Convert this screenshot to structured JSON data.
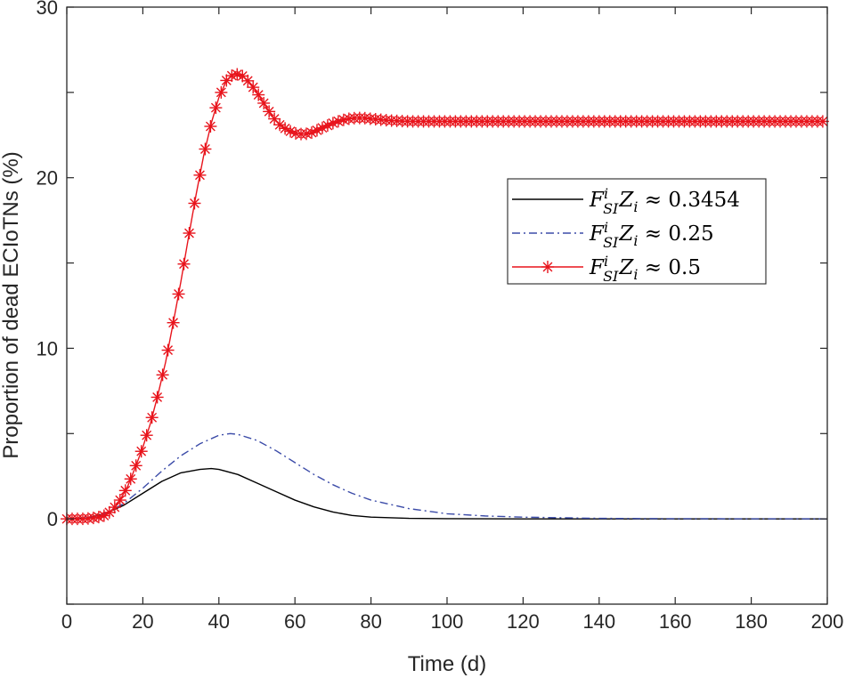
{
  "chart_data": {
    "type": "line",
    "title": "",
    "xlabel": "Time (d)",
    "ylabel": "Proportion of dead ECIoTNs (%)",
    "xlim": [
      0,
      200
    ],
    "ylim": [
      -5,
      30
    ],
    "xticks": [
      0,
      20,
      40,
      60,
      80,
      100,
      120,
      140,
      160,
      180,
      200
    ],
    "yticks": [
      0,
      10,
      20,
      30
    ],
    "grid": false,
    "legend_position": "upper-right",
    "series": [
      {
        "name": "F_SI^i Z_i ≈ 0.3454",
        "legend_main": "F",
        "legend_sup": "i",
        "legend_sub": "SI",
        "legend_z": "Z",
        "legend_zsub": "i",
        "legend_value": " ≈ 0.3454",
        "color": "#000000",
        "style": "solid",
        "marker": "none",
        "x": [
          0,
          5,
          10,
          15,
          20,
          25,
          30,
          35,
          38,
          40,
          45,
          50,
          55,
          60,
          65,
          70,
          75,
          80,
          90,
          100,
          120,
          150,
          200
        ],
        "y": [
          0,
          0.05,
          0.3,
          0.8,
          1.5,
          2.2,
          2.7,
          2.9,
          2.95,
          2.9,
          2.6,
          2.1,
          1.6,
          1.1,
          0.7,
          0.4,
          0.2,
          0.1,
          0.03,
          0.01,
          0,
          0,
          0
        ]
      },
      {
        "name": "F_SI^i Z_i ≈ 0.25",
        "legend_main": "F",
        "legend_sup": "i",
        "legend_sub": "SI",
        "legend_z": "Z",
        "legend_zsub": "i",
        "legend_value": " ≈ 0.25",
        "color": "#3b4ba8",
        "style": "dashdot",
        "marker": "none",
        "x": [
          0,
          5,
          10,
          15,
          20,
          25,
          30,
          35,
          40,
          43,
          45,
          50,
          55,
          60,
          65,
          70,
          75,
          80,
          90,
          100,
          110,
          120,
          140,
          160,
          200
        ],
        "y": [
          0,
          0.05,
          0.3,
          0.9,
          1.8,
          2.8,
          3.7,
          4.4,
          4.9,
          5.0,
          4.95,
          4.6,
          4.0,
          3.3,
          2.6,
          2.0,
          1.5,
          1.1,
          0.6,
          0.3,
          0.17,
          0.1,
          0.03,
          0.01,
          0
        ]
      },
      {
        "name": "F_SI^i Z_i ≈ 0.5",
        "legend_main": "F",
        "legend_sup": "i",
        "legend_sub": "SI",
        "legend_z": "Z",
        "legend_zsub": "i",
        "legend_value": " ≈ 0.5",
        "color": "#e8141c",
        "style": "solid",
        "marker": "asterisk",
        "x": [
          0,
          2,
          4,
          6,
          8,
          10,
          12,
          14,
          16,
          18,
          20,
          22,
          24,
          26,
          28,
          30,
          32,
          34,
          36,
          38,
          40,
          42,
          44,
          46,
          48,
          50,
          52,
          54,
          56,
          58,
          60,
          62,
          64,
          66,
          68,
          70,
          72,
          74,
          76,
          78,
          80,
          85,
          90,
          100,
          120,
          150,
          200
        ],
        "y": [
          0,
          0,
          0,
          0.03,
          0.08,
          0.2,
          0.5,
          1.1,
          1.9,
          3.0,
          4.2,
          5.6,
          7.3,
          9.2,
          11.5,
          13.9,
          16.5,
          19.0,
          21.3,
          23.2,
          24.7,
          25.7,
          26.1,
          26.0,
          25.6,
          25.0,
          24.3,
          23.6,
          23.1,
          22.8,
          22.6,
          22.55,
          22.6,
          22.8,
          23.0,
          23.2,
          23.35,
          23.45,
          23.5,
          23.5,
          23.45,
          23.35,
          23.3,
          23.3,
          23.3,
          23.3,
          23.3
        ]
      }
    ]
  }
}
